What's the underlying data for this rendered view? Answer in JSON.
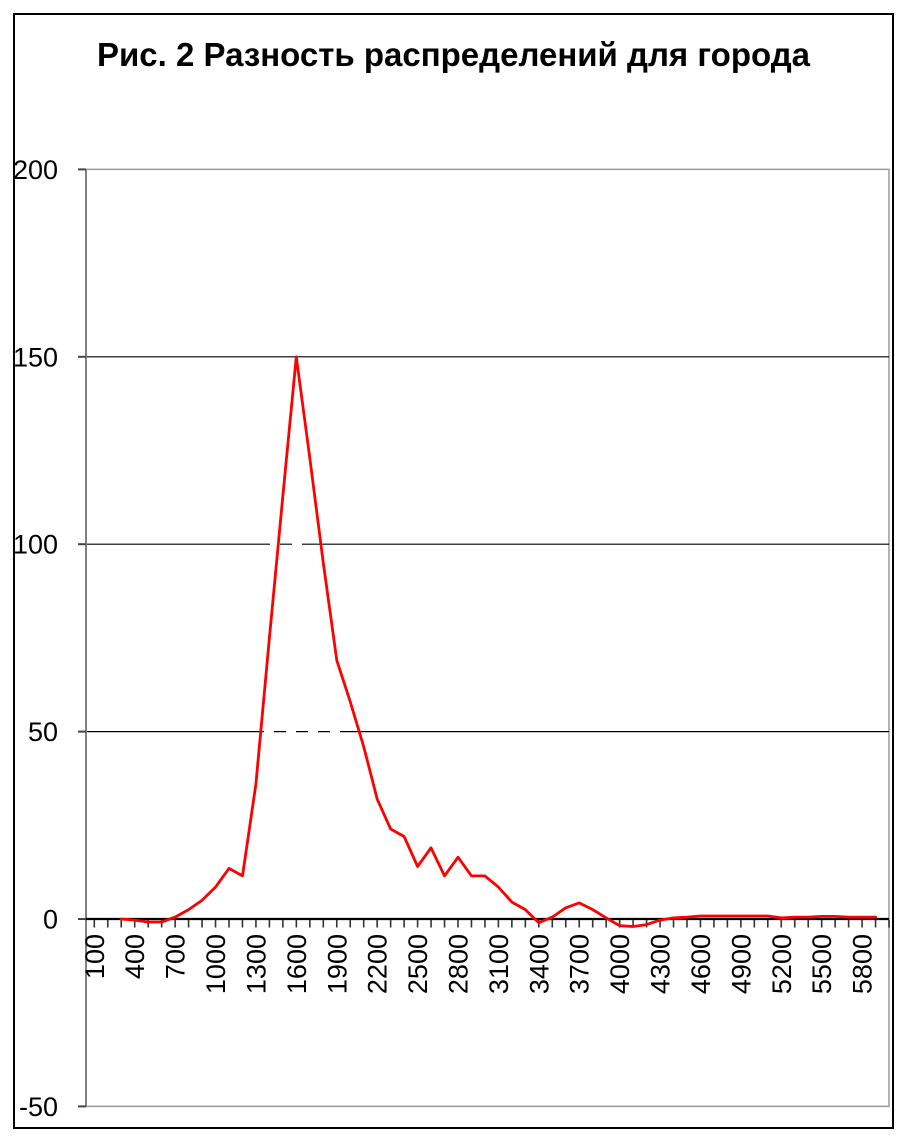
{
  "chart_data": {
    "type": "line",
    "title": "Рис. 2 Разность распределений для города",
    "xlabel": "",
    "ylabel": "",
    "ylim": [
      -50,
      200
    ],
    "x_range": [
      100,
      6000
    ],
    "x_minor_tick_step": 100,
    "x_label_step": 300,
    "grid": "horizontal",
    "legend": "none",
    "y_ticks": [
      200,
      150,
      100,
      50,
      0,
      -50
    ],
    "y_tick_labels": [
      "200",
      "150",
      "100",
      "50",
      "0",
      "-50"
    ],
    "x_tick_labels": [
      "100",
      "400",
      "700",
      "1000",
      "1300",
      "1600",
      "1900",
      "2200",
      "2500",
      "2800",
      "3100",
      "3400",
      "3700",
      "4000",
      "4300",
      "4600",
      "4900",
      "5200",
      "5500",
      "5800"
    ],
    "series": [
      {
        "name": "difference",
        "color": "#FF0000",
        "x": [
          300,
          400,
          500,
          600,
          700,
          800,
          900,
          1000,
          1100,
          1200,
          1300,
          1400,
          1500,
          1600,
          1700,
          1800,
          1900,
          2000,
          2100,
          2200,
          2300,
          2400,
          2500,
          2600,
          2700,
          2800,
          2900,
          3000,
          3100,
          3200,
          3300,
          3400,
          3500,
          3600,
          3700,
          3800,
          3900,
          4000,
          4100,
          4200,
          4300,
          4400,
          4500,
          4600,
          4700,
          4800,
          4900,
          5000,
          5100,
          5200,
          5300,
          5400,
          5500,
          5600,
          5700,
          5800,
          5900
        ],
        "values": [
          0,
          -0.3,
          -0.8,
          -0.8,
          0.5,
          2.5,
          5,
          8.5,
          13.5,
          11.5,
          36,
          75,
          113,
          150,
          123,
          95,
          69,
          58,
          46,
          32,
          24,
          22,
          14,
          19,
          11.5,
          16.5,
          11.5,
          11.5,
          8.5,
          4.5,
          2.5,
          -1,
          0.5,
          3,
          4.3,
          2.5,
          0.3,
          -1.8,
          -2,
          -1.5,
          -0.3,
          0.3,
          0.5,
          0.8,
          0.8,
          0.8,
          0.8,
          0.8,
          0.8,
          0.3,
          0.5,
          0.5,
          0.7,
          0.7,
          0.5,
          0.5,
          0.5
        ]
      }
    ],
    "colors": {
      "line": "#FF0000",
      "gridline": "#000000",
      "plot_border": "#9a9a9a",
      "value_axis": "#808080",
      "category_axis": "#000000",
      "text": "#000000"
    }
  }
}
